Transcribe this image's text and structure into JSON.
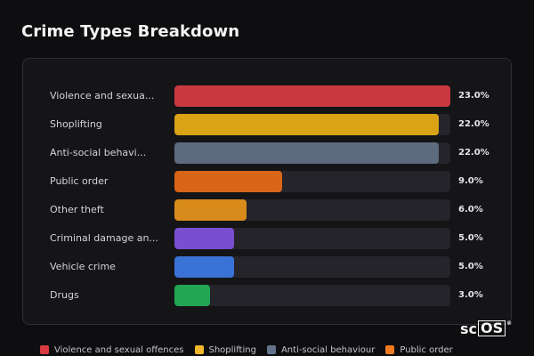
{
  "title": "Crime Types Breakdown",
  "chart_data": {
    "type": "bar",
    "orientation": "horizontal",
    "title": "Crime Types Breakdown",
    "xlim": [
      0,
      23
    ],
    "categories": [
      "Violence and sexua...",
      "Shoplifting",
      "Anti-social behavi...",
      "Public order",
      "Other theft",
      "Criminal damage an...",
      "Vehicle crime",
      "Drugs"
    ],
    "values": [
      23.0,
      22.0,
      22.0,
      9.0,
      6.0,
      5.0,
      5.0,
      3.0
    ],
    "value_labels": [
      "23.0%",
      "22.0%",
      "22.0%",
      "9.0%",
      "6.0%",
      "5.0%",
      "5.0%",
      "3.0%"
    ],
    "colors": [
      "#c9393f",
      "#d9a315",
      "#5e6a7e",
      "#d86518",
      "#d88b1a",
      "#7a4fcf",
      "#3b72d6",
      "#22a653"
    ]
  },
  "legend": [
    {
      "label": "Violence and sexual offences",
      "color": "#d93a40"
    },
    {
      "label": "Shoplifting",
      "color": "#f0b82a"
    },
    {
      "label": "Anti-social behaviour",
      "color": "#64748b"
    },
    {
      "label": "Public order",
      "color": "#f07a1f"
    }
  ],
  "logo": {
    "prefix": "sc",
    "boxed": "OS",
    "mark": "®"
  }
}
